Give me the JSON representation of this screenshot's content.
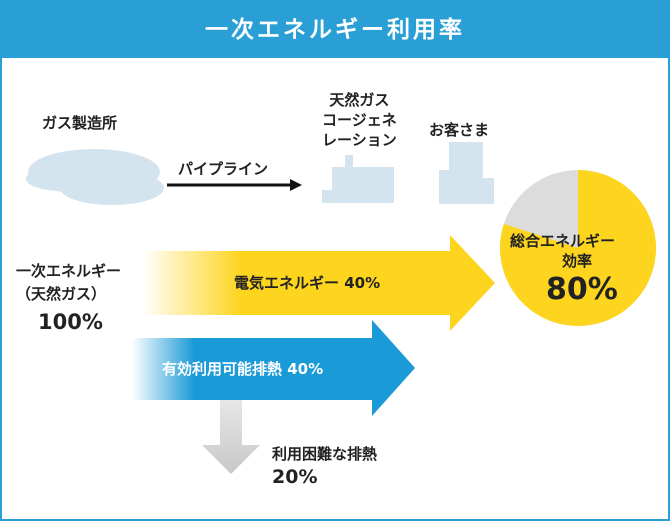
{
  "title": "一次エネルギー利用率",
  "sources": {
    "gas_plant": "ガス製造所",
    "pipeline": "パイプライン",
    "cogeneration": [
      "天然ガス",
      "コージェネ",
      "レーション"
    ],
    "customer": "お客さま"
  },
  "input": {
    "label_line1": "一次エネルギー",
    "label_line2": "（天然ガス）",
    "value": "100%"
  },
  "flows": {
    "electric": "電気エネルギー 40%",
    "heat_usable": "有効利用可能排熱 40%",
    "heat_waste_line1": "利用困難な排熱",
    "heat_waste_line2": "20%"
  },
  "total": {
    "label_line1": "総合エネルギー",
    "label_line2": "効率",
    "value": "80%"
  },
  "colors": {
    "header": "#2a9fd6",
    "yellow": "#fdd51f",
    "blue": "#1a9ad6",
    "gray": "#c8c8c8",
    "cloud": "#d4e4ee",
    "pie_rest": "#dcdcdc"
  },
  "pie": {
    "used_fraction": 0.8
  }
}
